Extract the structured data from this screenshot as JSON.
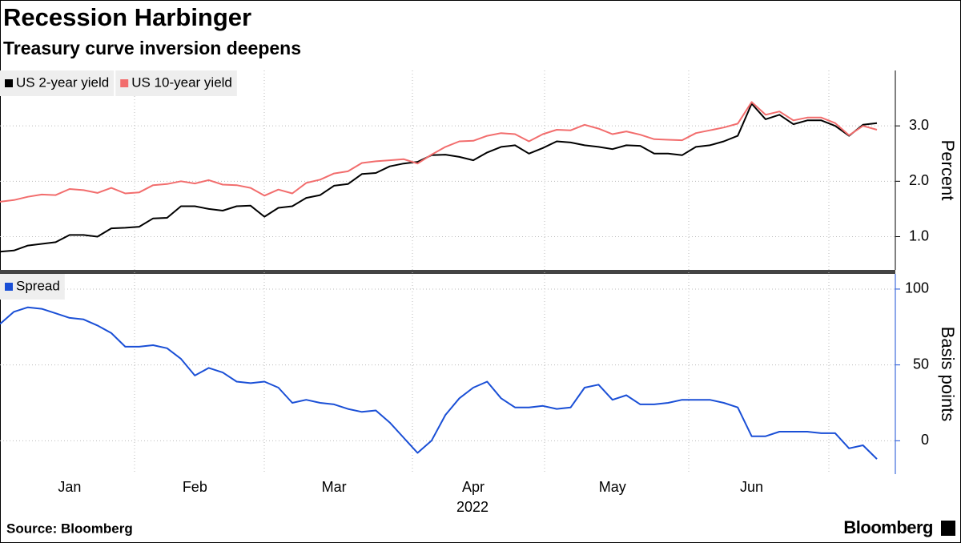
{
  "chart_data": [
    {
      "type": "line",
      "title": "Recession Harbinger",
      "subtitle": "Treasury curve inversion deepens",
      "y_label": "Percent",
      "ylim": [
        0.4,
        4.0
      ],
      "yticks": [
        {
          "value": 1,
          "label": "1.0"
        },
        {
          "value": 2,
          "label": "2.0"
        },
        {
          "value": 3,
          "label": "3.0"
        }
      ],
      "grid": true,
      "legend": "top-left",
      "series": [
        {
          "name": "US 2-year yield",
          "color": "#000000",
          "values": [
            0.73,
            0.75,
            0.84,
            0.87,
            0.9,
            1.03,
            1.03,
            1.0,
            1.15,
            1.16,
            1.18,
            1.33,
            1.34,
            1.55,
            1.55,
            1.5,
            1.47,
            1.55,
            1.56,
            1.36,
            1.52,
            1.55,
            1.7,
            1.75,
            1.92,
            1.95,
            2.13,
            2.15,
            2.27,
            2.32,
            2.35,
            2.47,
            2.48,
            2.44,
            2.38,
            2.52,
            2.62,
            2.65,
            2.5,
            2.6,
            2.72,
            2.7,
            2.65,
            2.62,
            2.58,
            2.65,
            2.64,
            2.5,
            2.5,
            2.47,
            2.62,
            2.65,
            2.72,
            2.82,
            3.4,
            3.12,
            3.2,
            3.03,
            3.1,
            3.1,
            3.0,
            2.82,
            3.02,
            3.05
          ]
        },
        {
          "name": "US 10-year yield",
          "color": "#f26d6d",
          "values": [
            1.63,
            1.66,
            1.72,
            1.76,
            1.75,
            1.86,
            1.84,
            1.79,
            1.88,
            1.78,
            1.8,
            1.93,
            1.95,
            2.0,
            1.96,
            2.02,
            1.94,
            1.93,
            1.88,
            1.74,
            1.85,
            1.78,
            1.97,
            2.03,
            2.14,
            2.18,
            2.33,
            2.36,
            2.38,
            2.4,
            2.32,
            2.48,
            2.62,
            2.72,
            2.73,
            2.82,
            2.87,
            2.85,
            2.72,
            2.85,
            2.93,
            2.92,
            3.02,
            2.95,
            2.85,
            2.9,
            2.84,
            2.76,
            2.75,
            2.74,
            2.87,
            2.92,
            2.97,
            3.04,
            3.43,
            3.2,
            3.26,
            3.1,
            3.15,
            3.15,
            3.05,
            2.83,
            3.0,
            2.93
          ]
        }
      ]
    },
    {
      "type": "line",
      "y_label": "Basis points",
      "x_label": "2022",
      "ylim": [
        -22,
        110
      ],
      "yticks": [
        0,
        50,
        100
      ],
      "grid": true,
      "legend": "top-left",
      "categories": [
        null,
        null,
        null,
        null,
        null,
        "Jan",
        null,
        null,
        null,
        null,
        null,
        null,
        null,
        null,
        "Feb",
        null,
        null,
        null,
        null,
        null,
        null,
        null,
        null,
        null,
        "Mar",
        null,
        null,
        null,
        null,
        null,
        null,
        null,
        null,
        null,
        "Apr",
        null,
        null,
        null,
        null,
        null,
        null,
        null,
        null,
        null,
        "May",
        null,
        null,
        null,
        null,
        null,
        null,
        null,
        null,
        null,
        "Jun",
        null,
        null,
        null,
        null,
        null,
        null,
        null,
        null,
        null
      ],
      "series": [
        {
          "name": "Spread",
          "color": "#1a4fd6",
          "values": [
            77,
            85,
            88,
            87,
            84,
            81,
            80,
            76,
            71,
            62,
            62,
            63,
            61,
            54,
            43,
            48,
            45,
            39,
            38,
            39,
            35,
            25,
            27,
            25,
            24,
            21,
            19,
            20,
            12,
            2,
            -8,
            0,
            17,
            28,
            35,
            39,
            28,
            22,
            22,
            23,
            21,
            22,
            35,
            37,
            27,
            30,
            24,
            24,
            25,
            27,
            27,
            27,
            25,
            22,
            3,
            3,
            6,
            6,
            6,
            5,
            5,
            -5,
            -3,
            -12
          ]
        }
      ]
    }
  ],
  "source": "Source: Bloomberg",
  "brand": "Bloomberg"
}
